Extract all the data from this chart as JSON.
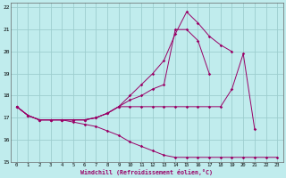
{
  "xlabel": "Windchill (Refroidissement éolien,°C)",
  "background_color": "#c0eced",
  "grid_color": "#9dcece",
  "line_color": "#990066",
  "xlim": [
    -0.5,
    23.5
  ],
  "ylim": [
    15,
    22.2
  ],
  "xticks": [
    0,
    1,
    2,
    3,
    4,
    5,
    6,
    7,
    8,
    9,
    10,
    11,
    12,
    13,
    14,
    15,
    16,
    17,
    18,
    19,
    20,
    21,
    22,
    23
  ],
  "yticks": [
    15,
    16,
    17,
    18,
    19,
    20,
    21,
    22
  ],
  "curves": [
    {
      "x": [
        0,
        1,
        2,
        3,
        4,
        5,
        6,
        7,
        8,
        9,
        10,
        11,
        12,
        13,
        14,
        15,
        16,
        17,
        18,
        19,
        20,
        21,
        22,
        23
      ],
      "y": [
        17.5,
        17.1,
        16.9,
        16.9,
        16.9,
        16.9,
        16.9,
        17.0,
        17.2,
        17.5,
        18.0,
        18.5,
        19.0,
        19.6,
        20.8,
        21.8,
        21.3,
        20.7,
        20.3,
        20.0,
        null,
        null,
        null,
        null
      ]
    },
    {
      "x": [
        0,
        1,
        2,
        3,
        4,
        5,
        6,
        7,
        8,
        9,
        10,
        11,
        12,
        13,
        14,
        15,
        16,
        17
      ],
      "y": [
        17.5,
        17.1,
        16.9,
        16.9,
        16.9,
        16.9,
        16.9,
        17.0,
        17.2,
        17.5,
        17.8,
        18.0,
        18.3,
        18.5,
        21.0,
        21.0,
        20.5,
        19.0
      ]
    },
    {
      "x": [
        0,
        1,
        2,
        3,
        4,
        5,
        6,
        7,
        8,
        9,
        10,
        11,
        12,
        13,
        14,
        15,
        16,
        17,
        18,
        19,
        20,
        21
      ],
      "y": [
        17.5,
        17.1,
        16.9,
        16.9,
        16.9,
        16.9,
        16.9,
        17.0,
        17.2,
        17.5,
        17.5,
        17.5,
        17.5,
        17.5,
        17.5,
        17.5,
        17.5,
        17.5,
        17.5,
        18.3,
        19.9,
        16.5
      ]
    },
    {
      "x": [
        0,
        1,
        2,
        3,
        4,
        5,
        6,
        7,
        8,
        9,
        10,
        11,
        12,
        13,
        14,
        15,
        16,
        17,
        18,
        19,
        20,
        21,
        22,
        23
      ],
      "y": [
        17.5,
        17.1,
        16.9,
        16.9,
        16.9,
        16.8,
        16.7,
        16.6,
        16.4,
        16.2,
        15.9,
        15.7,
        15.5,
        15.3,
        15.2,
        15.2,
        15.2,
        15.2,
        15.2,
        15.2,
        15.2,
        15.2,
        15.2,
        15.2
      ]
    }
  ]
}
